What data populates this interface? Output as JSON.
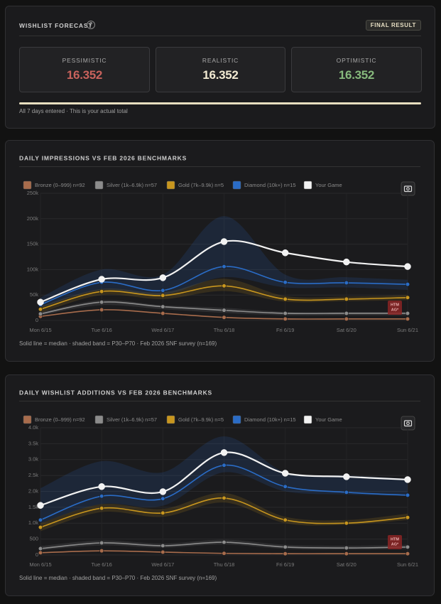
{
  "forecast": {
    "title": "WISHLIST FORECAST",
    "help": "?",
    "badge": "FINAL RESULT",
    "cards": [
      {
        "label": "PESSIMISTIC",
        "value": "16.352",
        "color": "#c8625c"
      },
      {
        "label": "REALISTIC",
        "value": "16.352",
        "color": "#f2ead2"
      },
      {
        "label": "OPTIMISTIC",
        "value": "16.352",
        "color": "#86b97c"
      }
    ],
    "note": "All 7 days entered · This is your actual total"
  },
  "chart_data": [
    {
      "type": "line",
      "title": "DAILY IMPRESSIONS VS FEB 2026 BENCHMARKS",
      "categories": [
        "Mon 6/15",
        "Tue 6/16",
        "Wed 6/17",
        "Thu 6/18",
        "Fri 6/19",
        "Sat 6/20",
        "Sun 6/21"
      ],
      "ylim": [
        0,
        250000
      ],
      "yticks": [
        0,
        {
          "value": 50000,
          "label": "50k"
        },
        {
          "value": 100000,
          "label": "100k"
        },
        {
          "value": 150000,
          "label": "150k"
        },
        {
          "value": 200000,
          "label": "200k"
        },
        {
          "value": 250000,
          "label": "250k"
        }
      ],
      "grid": true,
      "series": [
        {
          "name": "Bronze (0–999) n=92",
          "color": "#a86c4c",
          "values": [
            8000,
            21000,
            14000,
            6000,
            3000,
            3000,
            3000
          ]
        },
        {
          "name": "Silver (1k–6.9k) n=57",
          "color": "#8c8c8c",
          "values": [
            13000,
            36000,
            27000,
            20000,
            14000,
            14000,
            14000
          ],
          "band_low": [
            10000,
            30000,
            22000,
            15000,
            10000,
            10000,
            10000
          ],
          "band_high": [
            16000,
            40000,
            30000,
            25000,
            17000,
            17000,
            17000
          ]
        },
        {
          "name": "Gold (7k–9.9k) n=5",
          "color": "#c8961e",
          "values": [
            22000,
            57000,
            49000,
            68000,
            42000,
            42000,
            45000
          ],
          "band_low": [
            15000,
            50000,
            42000,
            58000,
            37000,
            38000,
            40000
          ],
          "band_high": [
            28000,
            62000,
            55000,
            82000,
            48000,
            47000,
            50000
          ]
        },
        {
          "name": "Diamond (10k+) n=15",
          "color": "#2a6cc6",
          "values": [
            31000,
            75000,
            59000,
            106000,
            75000,
            74000,
            71000
          ],
          "band_low": [
            25000,
            60000,
            50000,
            85000,
            65000,
            65000,
            60000
          ],
          "band_high": [
            45000,
            100000,
            90000,
            205000,
            90000,
            85000,
            80000
          ]
        },
        {
          "name": "Your Game",
          "color": "#f2f2f2",
          "values": [
            36000,
            81000,
            84000,
            155000,
            133000,
            115000,
            106000
          ]
        }
      ],
      "footnote": "Solid line = median · shaded band = P30–P70 · Feb 2026 SNF survey (n=169)",
      "watermark": [
        "HTM",
        "AG*"
      ]
    },
    {
      "type": "line",
      "title": "DAILY WISHLIST ADDITIONS VS FEB 2026 BENCHMARKS",
      "categories": [
        "Mon 6/15",
        "Tue 6/16",
        "Wed 6/17",
        "Thu 6/18",
        "Fri 6/19",
        "Sat 6/20",
        "Sun 6/21"
      ],
      "ylim": [
        0,
        4000
      ],
      "yticks": [
        0,
        500,
        {
          "value": 1000,
          "label": "1.0k"
        },
        {
          "value": 1500,
          "label": "1.5k"
        },
        {
          "value": 2000,
          "label": "2.0k"
        },
        {
          "value": 2500,
          "label": "2.5k"
        },
        {
          "value": 3000,
          "label": "3.0k"
        },
        {
          "value": 3500,
          "label": "3.5k"
        },
        {
          "value": 4000,
          "label": "4.0k"
        }
      ],
      "grid": true,
      "series": [
        {
          "name": "Bronze (0–999) n=92",
          "color": "#a86c4c",
          "values": [
            70,
            130,
            90,
            50,
            40,
            40,
            40
          ]
        },
        {
          "name": "Silver (1k–6.9k) n=57",
          "color": "#8c8c8c",
          "values": [
            200,
            380,
            290,
            400,
            250,
            220,
            250
          ],
          "band_low": [
            150,
            300,
            230,
            330,
            190,
            170,
            190
          ],
          "band_high": [
            280,
            460,
            360,
            480,
            320,
            290,
            320
          ]
        },
        {
          "name": "Gold (7k–9.9k) n=5",
          "color": "#c8961e",
          "values": [
            870,
            1470,
            1320,
            1790,
            1100,
            1000,
            1180
          ],
          "band_low": [
            750,
            1350,
            1200,
            1650,
            1000,
            950,
            1100
          ],
          "band_high": [
            1000,
            1600,
            1450,
            1950,
            1200,
            1100,
            1300
          ]
        },
        {
          "name": "Diamond (10k+) n=15",
          "color": "#2a6cc6",
          "values": [
            1100,
            1850,
            1770,
            2820,
            2150,
            1970,
            1880
          ],
          "band_low": [
            1000,
            1600,
            1550,
            2600,
            2000,
            1900,
            1850
          ],
          "band_high": [
            2100,
            2950,
            2600,
            3730,
            2600,
            2500,
            2400
          ]
        },
        {
          "name": "Your Game",
          "color": "#f2f2f2",
          "values": [
            1560,
            2150,
            1990,
            3220,
            2570,
            2460,
            2370
          ]
        }
      ],
      "footnote": "Solid line = median · shaded band = P30–P70 · Feb 2026 SNF survey (n=169)",
      "watermark": [
        "HTM",
        "AG*"
      ]
    }
  ]
}
